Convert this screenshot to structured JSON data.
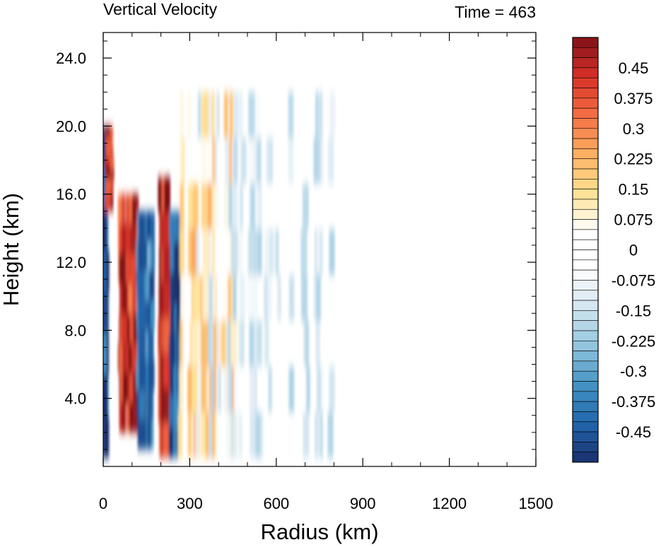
{
  "chart_data": {
    "type": "heatmap",
    "title": "Vertical Velocity",
    "subtitle": "Time = 463",
    "xlabel": "Radius (km)",
    "ylabel": "Height (km)",
    "xlim": [
      0,
      1500
    ],
    "ylim": [
      0,
      25.5
    ],
    "xticks": [
      "0",
      "300",
      "600",
      "900",
      "1200",
      "1500"
    ],
    "xtick_values": [
      0,
      300,
      600,
      900,
      1200,
      1500
    ],
    "yticks": [
      "4.0",
      "8.0",
      "12.0",
      "16.0",
      "20.0",
      "24.0"
    ],
    "ytick_values": [
      4,
      8,
      12,
      16,
      20,
      24
    ],
    "grid": false,
    "colorbar": {
      "placement": "right",
      "levels_min": -0.525,
      "levels_max": 0.525,
      "level_step": 0.025,
      "labels": [
        "0.45",
        "0.375",
        "0.3",
        "0.225",
        "0.15",
        "0.075",
        "0",
        "-0.075",
        "-0.15",
        "-0.225",
        "-0.3",
        "-0.375",
        "-0.45"
      ],
      "label_values": [
        0.45,
        0.375,
        0.3,
        0.225,
        0.15,
        0.075,
        0,
        -0.075,
        -0.15,
        -0.225,
        -0.3,
        -0.375,
        -0.45
      ],
      "colormap_stops": [
        "#1a2f6b",
        "#2166ac",
        "#4393c3",
        "#92c5de",
        "#d1e5f0",
        "#ffffff",
        "#ffffff",
        "#fee090",
        "#fdae61",
        "#f46d43",
        "#d73027",
        "#7f1018"
      ]
    },
    "features": [
      {
        "sign": "negative",
        "r_range": [
          0,
          15
        ],
        "z_range": [
          0.5,
          20
        ],
        "peak": -0.6
      },
      {
        "sign": "positive",
        "r_range": [
          0,
          30
        ],
        "z_range": [
          15,
          20
        ],
        "peak": 0.6
      },
      {
        "sign": "positive",
        "r_range": [
          60,
          120
        ],
        "z_range": [
          2,
          16
        ],
        "peak": 0.55
      },
      {
        "sign": "negative",
        "r_range": [
          120,
          170
        ],
        "z_range": [
          1,
          15
        ],
        "peak": -0.5
      },
      {
        "sign": "positive",
        "r_range": [
          180,
          230
        ],
        "z_range": [
          0.5,
          17
        ],
        "peak": 0.6
      },
      {
        "sign": "negative",
        "r_range": [
          235,
          270
        ],
        "z_range": [
          0.5,
          15
        ],
        "peak": -0.6
      },
      {
        "sign": "positive",
        "r_range": [
          270,
          460
        ],
        "z_range": [
          0.5,
          22
        ],
        "peak": 0.25
      },
      {
        "sign": "negative",
        "r_range": [
          280,
          800
        ],
        "z_range": [
          0.5,
          22
        ],
        "peak": -0.2
      }
    ]
  }
}
